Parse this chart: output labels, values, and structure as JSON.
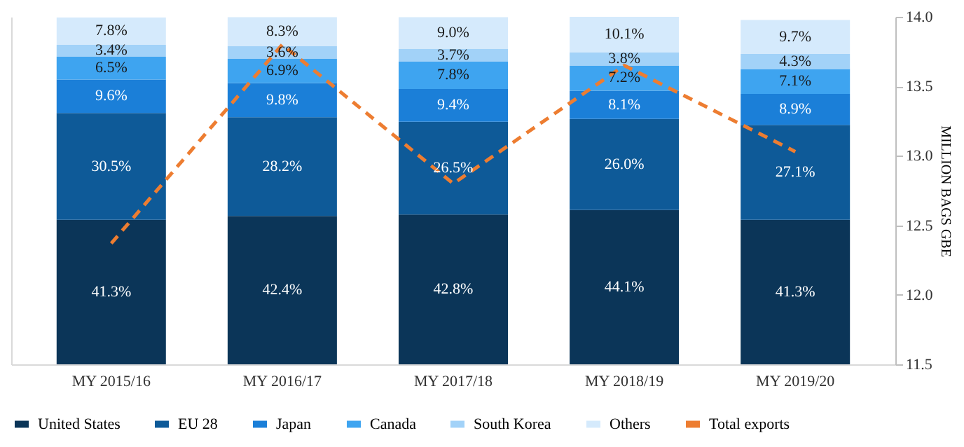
{
  "chart_data": {
    "type": "bar",
    "stacked": true,
    "categories": [
      "MY 2015/16",
      "MY 2016/17",
      "MY 2017/18",
      "MY 2018/19",
      "MY 2019/20"
    ],
    "series": [
      {
        "name": "United States",
        "color": "#0b3558",
        "values": [
          41.3,
          42.4,
          42.8,
          44.1,
          41.3
        ],
        "value_labels": [
          "41.3%",
          "42.4%",
          "42.8%",
          "44.1%",
          "41.3%"
        ]
      },
      {
        "name": "EU 28",
        "color": "#0e5a98",
        "values": [
          30.5,
          28.2,
          26.5,
          26.0,
          27.1
        ],
        "value_labels": [
          "30.5%",
          "28.2%",
          "26.5%",
          "26.0%",
          "27.1%"
        ]
      },
      {
        "name": "Japan",
        "color": "#1b7fd8",
        "values": [
          9.6,
          9.8,
          9.4,
          8.1,
          8.9
        ],
        "value_labels": [
          "9.6%",
          "9.8%",
          "9.4%",
          "8.1%",
          "8.9%"
        ]
      },
      {
        "name": "Canada",
        "color": "#3ea4f0",
        "values": [
          6.5,
          6.9,
          7.8,
          7.2,
          7.1
        ],
        "value_labels": [
          "6.5%",
          "6.9%",
          "7.8%",
          "7.2%",
          "7.1%"
        ]
      },
      {
        "name": "South Korea",
        "color": "#a2d2f8",
        "values": [
          3.4,
          3.6,
          3.7,
          3.8,
          4.3
        ],
        "value_labels": [
          "3.4%",
          "3.6%",
          "3.7%",
          "3.8%",
          "4.3%"
        ]
      },
      {
        "name": "Others",
        "color": "#d5eafc",
        "values": [
          7.8,
          8.3,
          9.0,
          10.1,
          9.7
        ],
        "value_labels": [
          "7.8%",
          "8.3%",
          "9.0%",
          "10.1%",
          "9.7%"
        ]
      },
      {
        "name": "Total exports",
        "type": "line",
        "axis": "y2",
        "color": "#ed7d31",
        "line_style": "dashed",
        "values": [
          12.37,
          13.8,
          12.8,
          13.65,
          13.03
        ]
      }
    ],
    "y2label": "MILLION BAGS GBE",
    "y2lim": [
      11.5,
      14.0
    ],
    "y2ticks": [
      11.5,
      {
        "value": 12,
        "label": "12.0"
      },
      12.5,
      {
        "value": 13,
        "label": "13.0"
      },
      13.5,
      {
        "value": 14,
        "label": "14.0"
      }
    ],
    "grid": false,
    "legend": "bottom"
  }
}
